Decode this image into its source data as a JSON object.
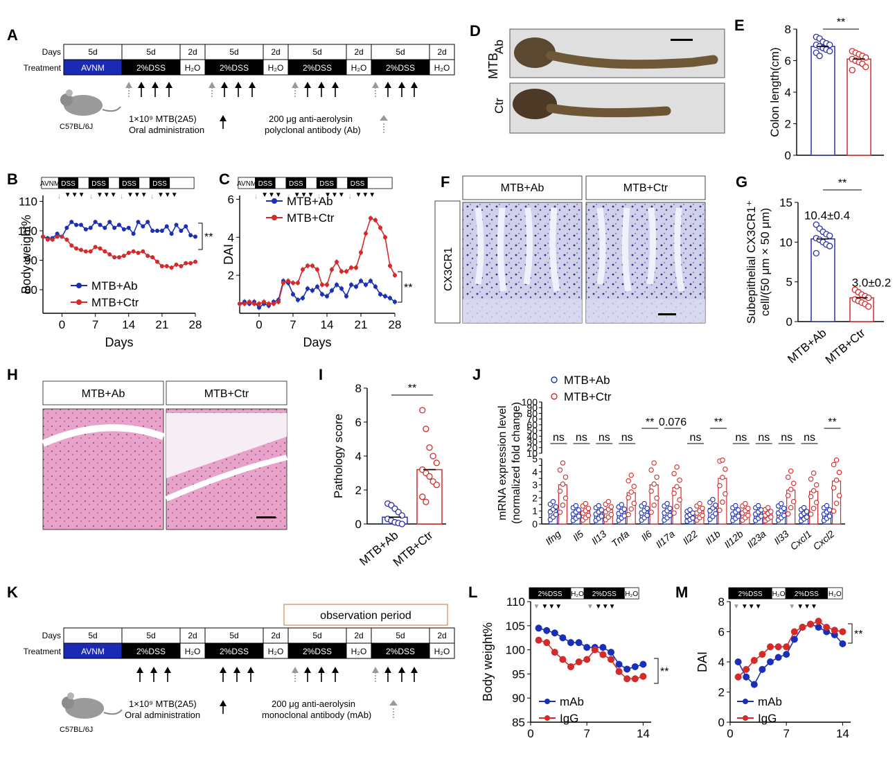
{
  "panel_letters": [
    "A",
    "B",
    "C",
    "D",
    "E",
    "F",
    "G",
    "H",
    "I",
    "J",
    "K",
    "L",
    "M"
  ],
  "timeline_A": {
    "days_label": "Days",
    "treatment_label": "Treatment",
    "days": [
      "5d",
      "5d",
      "2d",
      "5d",
      "2d",
      "5d",
      "2d",
      "5d",
      "2d"
    ],
    "treatments": [
      "AVNM",
      "2%DSS",
      "H₂O",
      "2%DSS",
      "H₂O",
      "2%DSS",
      "H₂O",
      "2%DSS",
      "H₂O"
    ],
    "mouse": "C57BL/6J",
    "mtb_line1": "1×10⁹ MTB(2A5)",
    "mtb_line2": "Oral administration",
    "ab_line1": "200 μg anti-aerolysin",
    "ab_line2": "polyclonal antibody (Ab)"
  },
  "timeline_K": {
    "observation": "observation period",
    "days_label": "Days",
    "treatment_label": "Treatment",
    "days": [
      "5d",
      "5d",
      "2d",
      "5d",
      "2d",
      "5d",
      "2d",
      "5d",
      "2d"
    ],
    "treatments": [
      "AVNM",
      "2%DSS",
      "H₂O",
      "2%DSS",
      "H₂O",
      "2%DSS",
      "H₂O",
      "2%DSS",
      "H₂O"
    ],
    "mouse": "C57BL/6J",
    "mtb_line1": "1×10⁹ MTB(2A5)",
    "mtb_line2": "Oral administration",
    "ab_line1": "200 μg anti-aerolysin",
    "ab_line2": "monoclonal antibody (mAb)"
  },
  "mini_bar": [
    "AVNM",
    "DSS",
    "DSS",
    "DSS",
    "DSS"
  ],
  "mini_bar_LM": [
    "2%DSS",
    "H₂O",
    "2%DSS",
    "H₂O"
  ],
  "panel_D": {
    "group": "MTB",
    "ab": "Ab",
    "ctr": "Ctr"
  },
  "panel_F": {
    "marker": "CX3CR1",
    "col1": "MTB+Ab",
    "col2": "MTB+Ctr"
  },
  "panel_H": {
    "col1": "MTB+Ab",
    "col2": "MTB+Ctr"
  },
  "sig": "**",
  "chart_data": [
    {
      "panel": "B",
      "type": "line",
      "xlabel": "Days",
      "ylabel": "Body weight%",
      "xticks": [
        0,
        7,
        14,
        21,
        28
      ],
      "yticks": [
        80,
        90,
        100,
        110
      ],
      "xlim": [
        -4,
        28
      ],
      "ylim": [
        72,
        112
      ],
      "series": [
        {
          "name": "MTB+Ab",
          "color": "#1a2fb5",
          "x": [
            -4,
            -3,
            -2,
            -1,
            0,
            1,
            2,
            3,
            4,
            5,
            6,
            7,
            8,
            9,
            10,
            11,
            12,
            13,
            14,
            15,
            16,
            17,
            18,
            19,
            20,
            21,
            22,
            23,
            24,
            25,
            26,
            27,
            28
          ],
          "y": [
            98,
            97.5,
            97.5,
            99,
            98,
            101,
            103,
            102,
            102,
            100.5,
            101,
            103,
            102,
            101,
            103,
            101,
            102,
            100.5,
            101,
            99,
            103,
            101.5,
            103,
            100,
            100,
            100,
            101.5,
            99,
            102,
            100,
            101.5,
            98.5,
            98
          ]
        },
        {
          "name": "MTB+Ctr",
          "color": "#d42a2a",
          "x": [
            -4,
            -3,
            -2,
            -1,
            0,
            1,
            2,
            3,
            4,
            5,
            6,
            7,
            8,
            9,
            10,
            11,
            12,
            13,
            14,
            15,
            16,
            17,
            18,
            19,
            20,
            21,
            22,
            23,
            24,
            25,
            26,
            27,
            28
          ],
          "y": [
            98,
            97,
            97,
            98,
            98,
            97,
            95,
            94,
            93.5,
            93,
            93,
            94.5,
            94,
            93,
            92,
            91,
            91,
            91.5,
            92.5,
            93,
            92.5,
            93,
            91.5,
            91,
            89.5,
            88,
            88,
            87.5,
            88.5,
            88,
            89,
            89,
            89.5
          ]
        }
      ]
    },
    {
      "panel": "C",
      "type": "line",
      "xlabel": "Days",
      "ylabel": "DAI",
      "xticks": [
        0,
        7,
        14,
        21,
        28
      ],
      "yticks": [
        2,
        4,
        6
      ],
      "xlim": [
        -4,
        28
      ],
      "ylim": [
        0,
        6.2
      ],
      "series": [
        {
          "name": "MTB+Ab",
          "color": "#1a2fb5",
          "x": [
            -4,
            -3,
            -2,
            -1,
            0,
            1,
            2,
            3,
            4,
            5,
            6,
            7,
            8,
            9,
            10,
            11,
            12,
            13,
            14,
            15,
            16,
            17,
            18,
            19,
            20,
            21,
            22,
            23,
            24,
            25,
            26,
            27,
            28
          ],
          "y": [
            0.5,
            0.6,
            0.5,
            0.6,
            0.3,
            0.5,
            0.4,
            0.6,
            0.7,
            1.7,
            1.6,
            1,
            0.7,
            0.8,
            1.3,
            1.2,
            1.4,
            1,
            0.9,
            1.2,
            1.5,
            1.3,
            0.9,
            1.5,
            1.4,
            1.7,
            1.5,
            1.7,
            1.4,
            1,
            0.9,
            0.8,
            0.6
          ]
        },
        {
          "name": "MTB+Ctr",
          "color": "#d42a2a",
          "x": [
            -4,
            -3,
            -2,
            -1,
            0,
            1,
            2,
            3,
            4,
            5,
            6,
            7,
            8,
            9,
            10,
            11,
            12,
            13,
            14,
            15,
            16,
            17,
            18,
            19,
            20,
            21,
            22,
            23,
            24,
            25,
            26,
            27,
            28
          ],
          "y": [
            0.5,
            0.5,
            0.6,
            0.5,
            0.5,
            0.6,
            0.5,
            0.5,
            0.6,
            1.6,
            1.7,
            1.6,
            1.6,
            2.3,
            2.5,
            2.5,
            2.3,
            1.5,
            1.5,
            2.3,
            2.7,
            2.2,
            2.2,
            2.4,
            2.4,
            3.2,
            4.2,
            5,
            4.9,
            4.5,
            4,
            2.5,
            2
          ]
        }
      ]
    },
    {
      "panel": "E",
      "type": "bar",
      "ylabel": "Colon length(cm)",
      "yticks": [
        0,
        2,
        4,
        6,
        8
      ],
      "ylim": [
        0,
        8
      ],
      "categories": [
        "MTB+Ab",
        "MTB+Ctr"
      ],
      "values": [
        6.9,
        6.1
      ],
      "colors": [
        "#2a2fa8",
        "#d42a2a"
      ],
      "points": [
        [
          7.5,
          7.4,
          7.2,
          7.1,
          7,
          7,
          6.9,
          6.8,
          6.7,
          6.6,
          6.5,
          6.3
        ],
        [
          6.6,
          6.5,
          6.4,
          6.3,
          6.2,
          6.1,
          6,
          5.9,
          5.8,
          5.6,
          5.4
        ]
      ]
    },
    {
      "panel": "G",
      "type": "bar",
      "ylabel": "Subepithelial  CX3CR1⁺",
      "ylabel2": "cell/(50 μm × 50 μm)",
      "yticks": [
        0,
        5,
        10,
        15
      ],
      "ylim": [
        0,
        15
      ],
      "categories": [
        "MTB+Ab",
        "MTB+Ctr"
      ],
      "values": [
        10.4,
        3
      ],
      "labels": [
        "10.4±0.4",
        "3.0±0.2"
      ],
      "colors": [
        "#2a2fa8",
        "#d42a2a"
      ],
      "points": [
        [
          12.2,
          11.7,
          11.3,
          11,
          10.8,
          10.5,
          10.3,
          10,
          9.7,
          9.5,
          8.6
        ],
        [
          4,
          3.7,
          3.4,
          3.2,
          3,
          2.8,
          2.6,
          2.4,
          2.2,
          1.9
        ]
      ]
    },
    {
      "panel": "I",
      "type": "bar",
      "ylabel": "Pathology score",
      "yticks": [
        0,
        2,
        4,
        6,
        8
      ],
      "ylim": [
        0,
        8
      ],
      "categories": [
        "MTB+Ab",
        "MTB+Ctr"
      ],
      "values": [
        0.4,
        3.2
      ],
      "colors": [
        "#2a2fa8",
        "#d42a2a"
      ],
      "points": [
        [
          1.2,
          1.1,
          0.9,
          0.7,
          0.5,
          0.3,
          0.2,
          0.1,
          0.05,
          0
        ],
        [
          6.7,
          5.6,
          4.5,
          4,
          3.6,
          3.2,
          3,
          2.8,
          2.5,
          2.3,
          1.6,
          1.3
        ]
      ]
    },
    {
      "panel": "J",
      "type": "bar",
      "ylabel": "mRNA expression level",
      "ylabel2": "(normalized fold change)",
      "yticks_low": [
        0,
        0.5,
        1,
        1.5,
        2,
        2.5,
        3,
        3.5,
        4,
        4.5,
        5
      ],
      "yticks_high": [
        10,
        20,
        30,
        40,
        50,
        60,
        70,
        80,
        90,
        100
      ],
      "categories": [
        "Ifng",
        "Il5",
        "Il13",
        "Tnfa",
        "Il6",
        "Il17a",
        "Il22",
        "Il1b",
        "Il12b",
        "Il23a",
        "Il33",
        "Cxcl1",
        "Cxcl2"
      ],
      "series": [
        {
          "name": "MTB+Ab",
          "color": "#1a2fb5",
          "values": [
            1.1,
            0.9,
            0.9,
            0.95,
            1,
            1,
            0.7,
            1.2,
            0.9,
            0.9,
            1,
            0.8,
            0.9
          ]
        },
        {
          "name": "MTB+Ctr",
          "color": "#d42a2a",
          "values": [
            3,
            1,
            1.1,
            2.4,
            3,
            2.8,
            1,
            3.5,
            1,
            0.8,
            2.6,
            2.5,
            3.3
          ]
        }
      ],
      "annotations": [
        "ns",
        "ns",
        "ns",
        "ns",
        "**",
        "0.076",
        "ns",
        "**",
        "ns",
        "ns",
        "ns",
        "ns",
        "**"
      ]
    },
    {
      "panel": "L",
      "type": "line",
      "ylabel": "Body weight%",
      "xticks": [
        0,
        7,
        14
      ],
      "yticks": [
        85,
        90,
        95,
        100,
        105,
        110
      ],
      "xlim": [
        0,
        15
      ],
      "ylim": [
        85,
        110
      ],
      "series": [
        {
          "name": "mAb",
          "color": "#1a2fb5",
          "x": [
            1,
            2,
            3,
            4,
            5,
            6,
            7,
            8,
            9,
            10,
            11,
            12,
            13,
            14
          ],
          "y": [
            104.5,
            104,
            103.5,
            102.5,
            101.5,
            101.5,
            100.5,
            100.5,
            100.5,
            99.5,
            97,
            96,
            96.5,
            97
          ]
        },
        {
          "name": "IgG",
          "color": "#d42a2a",
          "x": [
            1,
            2,
            3,
            4,
            5,
            6,
            7,
            8,
            9,
            10,
            11,
            12,
            13,
            14
          ],
          "y": [
            102,
            101.5,
            99.5,
            98,
            96.5,
            97.5,
            98,
            100,
            99,
            98,
            95.5,
            94,
            94,
            94.5
          ]
        }
      ]
    },
    {
      "panel": "M",
      "type": "line",
      "ylabel": "DAI",
      "xticks": [
        0,
        7,
        14
      ],
      "yticks": [
        0,
        2,
        4,
        6,
        8
      ],
      "xlim": [
        0,
        15
      ],
      "ylim": [
        0,
        8
      ],
      "series": [
        {
          "name": "mAb",
          "color": "#1a2fb5",
          "x": [
            1,
            2,
            3,
            4,
            5,
            6,
            7,
            8,
            9,
            10,
            11,
            12,
            13,
            14
          ],
          "y": [
            4,
            3,
            2.5,
            3.5,
            4,
            4.3,
            4.5,
            5.5,
            6.3,
            6.5,
            6.3,
            6,
            5.8,
            5.2
          ]
        },
        {
          "name": "IgG",
          "color": "#d42a2a",
          "x": [
            1,
            2,
            3,
            4,
            5,
            6,
            7,
            8,
            9,
            10,
            11,
            12,
            13,
            14
          ],
          "y": [
            3,
            3.5,
            4.1,
            4.5,
            5,
            5,
            5,
            6,
            6.3,
            6.5,
            6.7,
            6.3,
            6.1,
            6
          ]
        }
      ]
    }
  ]
}
